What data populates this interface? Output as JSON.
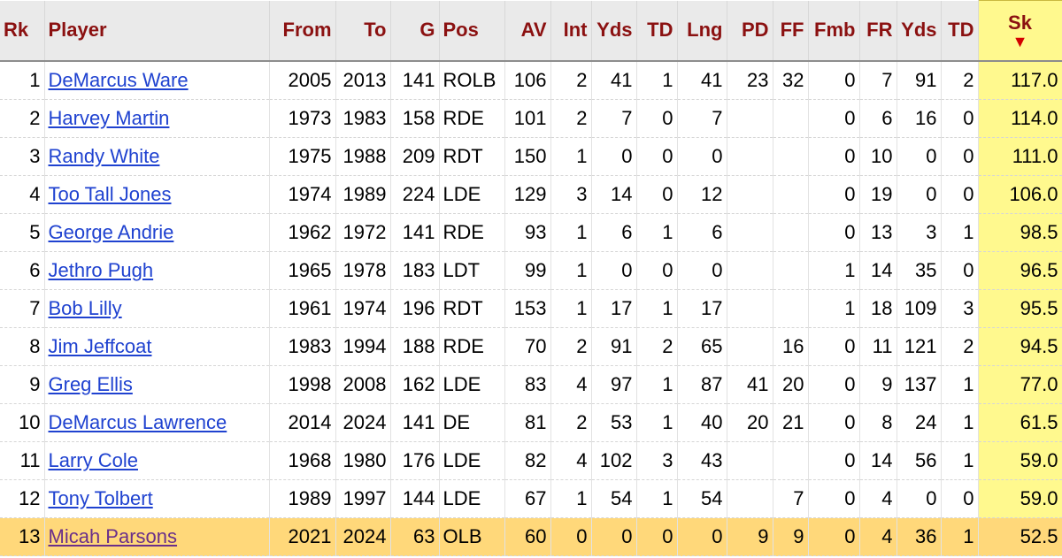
{
  "columns": [
    "Rk",
    "Player",
    "From",
    "To",
    "G",
    "Pos",
    "AV",
    "Int",
    "Yds",
    "TD",
    "Lng",
    "PD",
    "FF",
    "Fmb",
    "FR",
    "Yds",
    "TD",
    "Sk"
  ],
  "sort_arrow": "▼",
  "colors": {
    "header_text": "#8b1111",
    "link": "#1f42d0",
    "visited_link": "#6a2f8a",
    "sorted_column": "#fff98e",
    "highlight_row": "#ffd87a",
    "sort_arrow": "#d30000"
  },
  "rows": [
    [
      "1",
      "DeMarcus Ware",
      "2005",
      "2013",
      "141",
      "ROLB",
      "106",
      "2",
      "41",
      "1",
      "41",
      "23",
      "32",
      "0",
      "7",
      "91",
      "2",
      "117.0"
    ],
    [
      "2",
      "Harvey Martin",
      "1973",
      "1983",
      "158",
      "RDE",
      "101",
      "2",
      "7",
      "0",
      "7",
      "",
      "",
      "0",
      "6",
      "16",
      "0",
      "114.0"
    ],
    [
      "3",
      "Randy White",
      "1975",
      "1988",
      "209",
      "RDT",
      "150",
      "1",
      "0",
      "0",
      "0",
      "",
      "",
      "0",
      "10",
      "0",
      "0",
      "111.0"
    ],
    [
      "4",
      "Too Tall Jones",
      "1974",
      "1989",
      "224",
      "LDE",
      "129",
      "3",
      "14",
      "0",
      "12",
      "",
      "",
      "0",
      "19",
      "0",
      "0",
      "106.0"
    ],
    [
      "5",
      "George Andrie",
      "1962",
      "1972",
      "141",
      "RDE",
      "93",
      "1",
      "6",
      "1",
      "6",
      "",
      "",
      "0",
      "13",
      "3",
      "1",
      "98.5"
    ],
    [
      "6",
      "Jethro Pugh",
      "1965",
      "1978",
      "183",
      "LDT",
      "99",
      "1",
      "0",
      "0",
      "0",
      "",
      "",
      "1",
      "14",
      "35",
      "0",
      "96.5"
    ],
    [
      "7",
      "Bob Lilly",
      "1961",
      "1974",
      "196",
      "RDT",
      "153",
      "1",
      "17",
      "1",
      "17",
      "",
      "",
      "1",
      "18",
      "109",
      "3",
      "95.5"
    ],
    [
      "8",
      "Jim Jeffcoat",
      "1983",
      "1994",
      "188",
      "RDE",
      "70",
      "2",
      "91",
      "2",
      "65",
      "",
      "16",
      "0",
      "11",
      "121",
      "2",
      "94.5"
    ],
    [
      "9",
      "Greg Ellis",
      "1998",
      "2008",
      "162",
      "LDE",
      "83",
      "4",
      "97",
      "1",
      "87",
      "41",
      "20",
      "0",
      "9",
      "137",
      "1",
      "77.0"
    ],
    [
      "10",
      "DeMarcus Lawrence",
      "2014",
      "2024",
      "141",
      "DE",
      "81",
      "2",
      "53",
      "1",
      "40",
      "20",
      "21",
      "0",
      "8",
      "24",
      "1",
      "61.5"
    ],
    [
      "11",
      "Larry Cole",
      "1968",
      "1980",
      "176",
      "LDE",
      "82",
      "4",
      "102",
      "3",
      "43",
      "",
      "",
      "0",
      "14",
      "56",
      "1",
      "59.0"
    ],
    [
      "12",
      "Tony Tolbert",
      "1989",
      "1997",
      "144",
      "LDE",
      "67",
      "1",
      "54",
      "1",
      "54",
      "",
      "7",
      "0",
      "4",
      "0",
      "0",
      "59.0"
    ],
    [
      "13",
      "Micah Parsons",
      "2021",
      "2024",
      "63",
      "OLB",
      "60",
      "0",
      "0",
      "0",
      "0",
      "9",
      "9",
      "0",
      "4",
      "36",
      "1",
      "52.5"
    ]
  ]
}
